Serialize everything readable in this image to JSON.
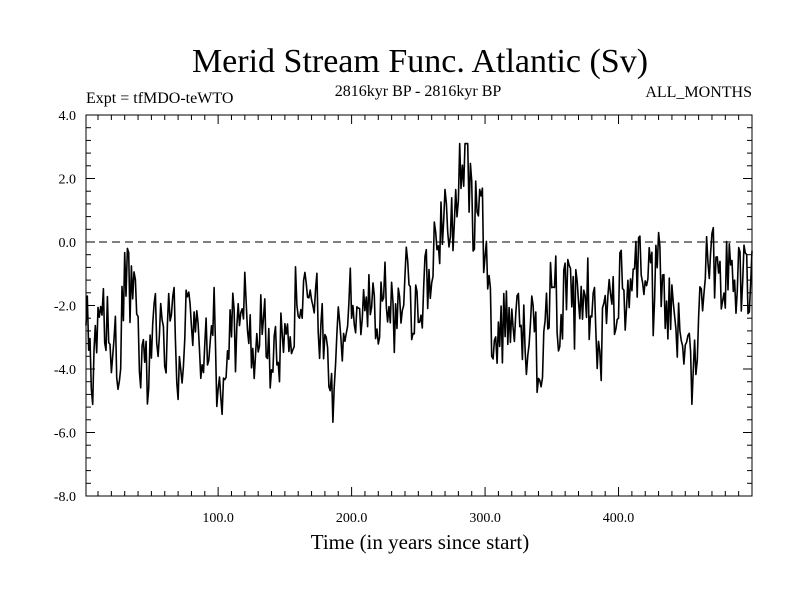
{
  "chart_data": {
    "type": "line",
    "title": "Merid Stream Func. Atlantic (Sv)",
    "subtitle_left": "Expt = tfMDO-teWTO",
    "subtitle_center": "2816kyr BP - 2816kyr BP",
    "subtitle_right": "ALL_MONTHS",
    "xlabel": "Time (in years since start)",
    "ylabel": "",
    "xlim": [
      1,
      500
    ],
    "ylim": [
      -8.0,
      4.0
    ],
    "x_ticks": [
      100,
      200,
      300,
      400
    ],
    "x_tick_labels": [
      "100.0",
      "200.0",
      "300.0",
      "400.0"
    ],
    "y_ticks": [
      -8,
      -6,
      -4,
      -2,
      0,
      2,
      4
    ],
    "y_tick_labels": [
      "-8.0",
      "-6.0",
      "-4.0",
      "-2.0",
      "0.0",
      "2.0",
      "4.0"
    ],
    "zero_line": 0.0,
    "grid": false,
    "series": [
      {
        "name": "Merid Stream Func. Atlantic",
        "x_start": 1,
        "x_step": 5,
        "values": [
          -2.6,
          -4.5,
          -3.0,
          -2.2,
          -3.5,
          -3.8,
          -1.0,
          -2.0,
          -3.1,
          -4.2,
          -2.8,
          -2.6,
          -3.2,
          -1.6,
          -4.8,
          -2.2,
          -2.5,
          -3.2,
          -2.8,
          -2.0,
          -5.2,
          -3.6,
          -2.8,
          -3.0,
          -1.8,
          -3.4,
          -2.8,
          -2.5,
          -4.2,
          -3.6,
          -2.0,
          -2.6,
          -1.2,
          -2.4,
          -1.8,
          -2.6,
          -3.0,
          -5.0,
          -2.8,
          -2.4,
          -1.8,
          -2.2,
          -2.4,
          -2.0,
          -1.9,
          -1.6,
          -2.8,
          -1.6,
          -1.0,
          -2.0,
          -1.8,
          -1.5,
          -0.6,
          0.5,
          0.6,
          1.0,
          2.0,
          2.5,
          0.8,
          1.5,
          -1.2,
          -2.6,
          -3.2,
          -1.8,
          -2.8,
          -2.4,
          -3.2,
          -2.8,
          -4.0,
          -2.0,
          -1.0,
          -2.5,
          -1.6,
          -2.2,
          -2.0,
          -1.6,
          -2.2,
          -4.0,
          -1.6,
          -1.8,
          -1.4,
          -1.6,
          -1.0,
          -0.6,
          -0.9,
          -1.8,
          -0.8,
          -2.0,
          -2.6,
          -3.0,
          -2.8,
          -4.2,
          -1.6,
          -0.2,
          -0.4,
          -0.8,
          -0.9,
          -1.0,
          -1.4,
          -1.2
        ],
        "note": "decimated 5-year samples of the yearly curve"
      }
    ]
  }
}
